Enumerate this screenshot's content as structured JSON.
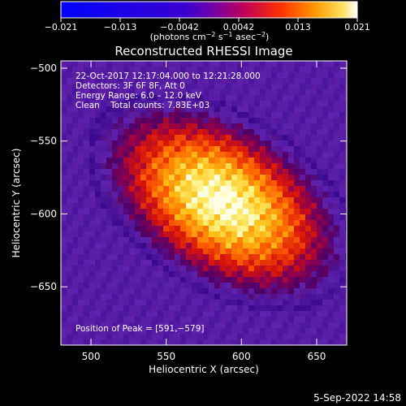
{
  "colorbar": {
    "ticks": [
      "−0.021",
      "−0.013",
      "−0.0042",
      "0.0042",
      "0.013",
      "0.021"
    ],
    "unit_main": "(photons cm",
    "unit_exp1": "−2",
    "unit_mid": " s",
    "unit_exp2": "−1",
    "unit_end": " asec",
    "unit_exp3": "−2",
    "unit_close": ")"
  },
  "title": "Reconstructed RHESSI Image",
  "info": {
    "line1": "22-Oct-2017 12:17:04.000 to 12:21:28.000",
    "line2": "Detectors: 3F 6F 8F, Att 0",
    "line3": "Energy Range: 6.0 – 12.0 keV",
    "line4": "Clean    Total counts: 7.83E+03"
  },
  "peak_label": "Position of Peak = [591,−579]",
  "axes": {
    "xlabel": "Heliocentric X (arcsec)",
    "ylabel": "Heliocentric Y (arcsec)",
    "xticks": [
      {
        "v": 500,
        "label": "500"
      },
      {
        "v": 550,
        "label": "550"
      },
      {
        "v": 600,
        "label": "600"
      },
      {
        "v": 650,
        "label": "650"
      }
    ],
    "yticks": [
      {
        "v": -500,
        "label": "−500"
      },
      {
        "v": -550,
        "label": "−550"
      },
      {
        "v": -600,
        "label": "−600"
      },
      {
        "v": -650,
        "label": "−650"
      }
    ],
    "xlim": [
      480,
      670
    ],
    "ylim": [
      -690,
      -495
    ]
  },
  "image": {
    "peak": [
      591,
      -579
    ],
    "source_angle_deg": -30
  },
  "footer": "5-Sep-2022 14:58"
}
